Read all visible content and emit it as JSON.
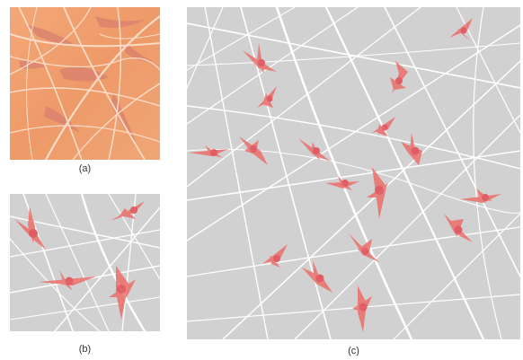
{
  "panels": [
    {
      "id": "a",
      "caption": "(a)"
    },
    {
      "id": "b",
      "caption": "(b)"
    },
    {
      "id": "c",
      "caption": "(c)"
    }
  ],
  "colors": {
    "tissue_background": "#f0a272",
    "tissue_fiber": "#fbe3d2",
    "tissue_cell": "#d77b6a",
    "model_background": "#d1d1d1",
    "fiber": "#ffffff",
    "cell": "#ec6f6a",
    "cell_core": "#e24b52"
  }
}
